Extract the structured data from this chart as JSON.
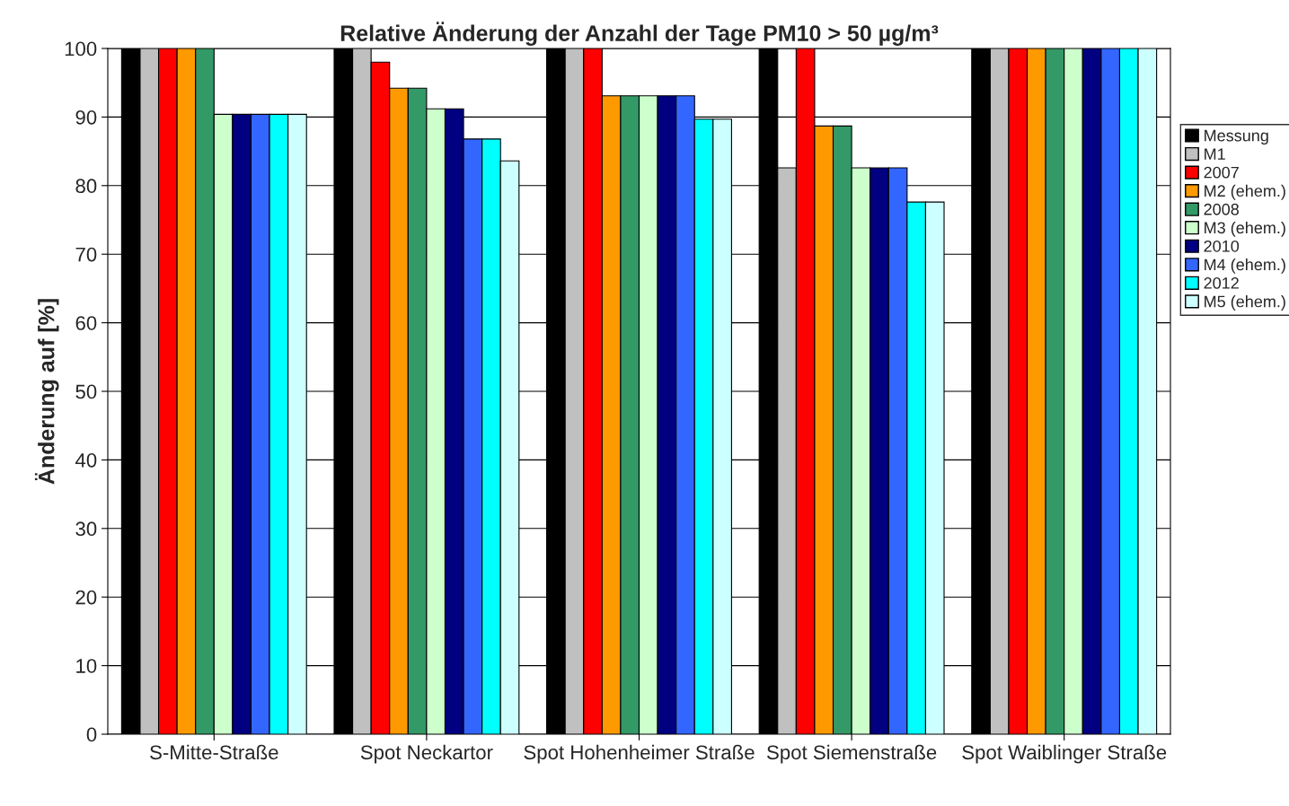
{
  "chart_data": {
    "type": "bar",
    "title": "Relative Änderung der Anzahl der Tage PM10 > 50 µg/m³",
    "ylabel": "Änderung auf [%]",
    "categories": [
      "S-Mitte-Straße",
      "Spot Neckartor",
      "Spot Hohenheimer Straße",
      "Spot Siemenstraße",
      "Spot Waiblinger Straße"
    ],
    "series": [
      {
        "name": "Messung",
        "color": "#000000",
        "values": [
          100,
          100,
          100,
          100,
          100
        ]
      },
      {
        "name": "M1",
        "color": "#c0c0c0",
        "values": [
          100,
          100,
          100,
          82.6,
          100
        ]
      },
      {
        "name": "2007",
        "color": "#ff0000",
        "values": [
          100,
          98.0,
          100,
          100,
          100
        ]
      },
      {
        "name": "M2 (ehem.)",
        "color": "#ff9900",
        "values": [
          100,
          94.2,
          93.1,
          88.7,
          100
        ]
      },
      {
        "name": "2008",
        "color": "#339966",
        "values": [
          100,
          94.2,
          93.1,
          88.7,
          100
        ]
      },
      {
        "name": "M3 (ehem.)",
        "color": "#ccffcc",
        "values": [
          90.4,
          91.2,
          93.1,
          82.6,
          100
        ]
      },
      {
        "name": "2010",
        "color": "#000080",
        "values": [
          90.4,
          91.2,
          93.1,
          82.6,
          100
        ]
      },
      {
        "name": "M4 (ehem.)",
        "color": "#3366ff",
        "values": [
          90.4,
          86.8,
          93.1,
          82.6,
          100
        ]
      },
      {
        "name": "2012",
        "color": "#00ffff",
        "values": [
          90.4,
          86.8,
          89.7,
          77.6,
          100
        ]
      },
      {
        "name": "M5 (ehem.)",
        "color": "#ccffff",
        "values": [
          90.4,
          83.6,
          89.7,
          77.6,
          100
        ]
      }
    ],
    "ylim": [
      0,
      100
    ],
    "yticks": [
      0,
      10,
      20,
      30,
      40,
      50,
      60,
      70,
      80,
      90,
      100
    ],
    "grid": "y",
    "legend": "right"
  }
}
